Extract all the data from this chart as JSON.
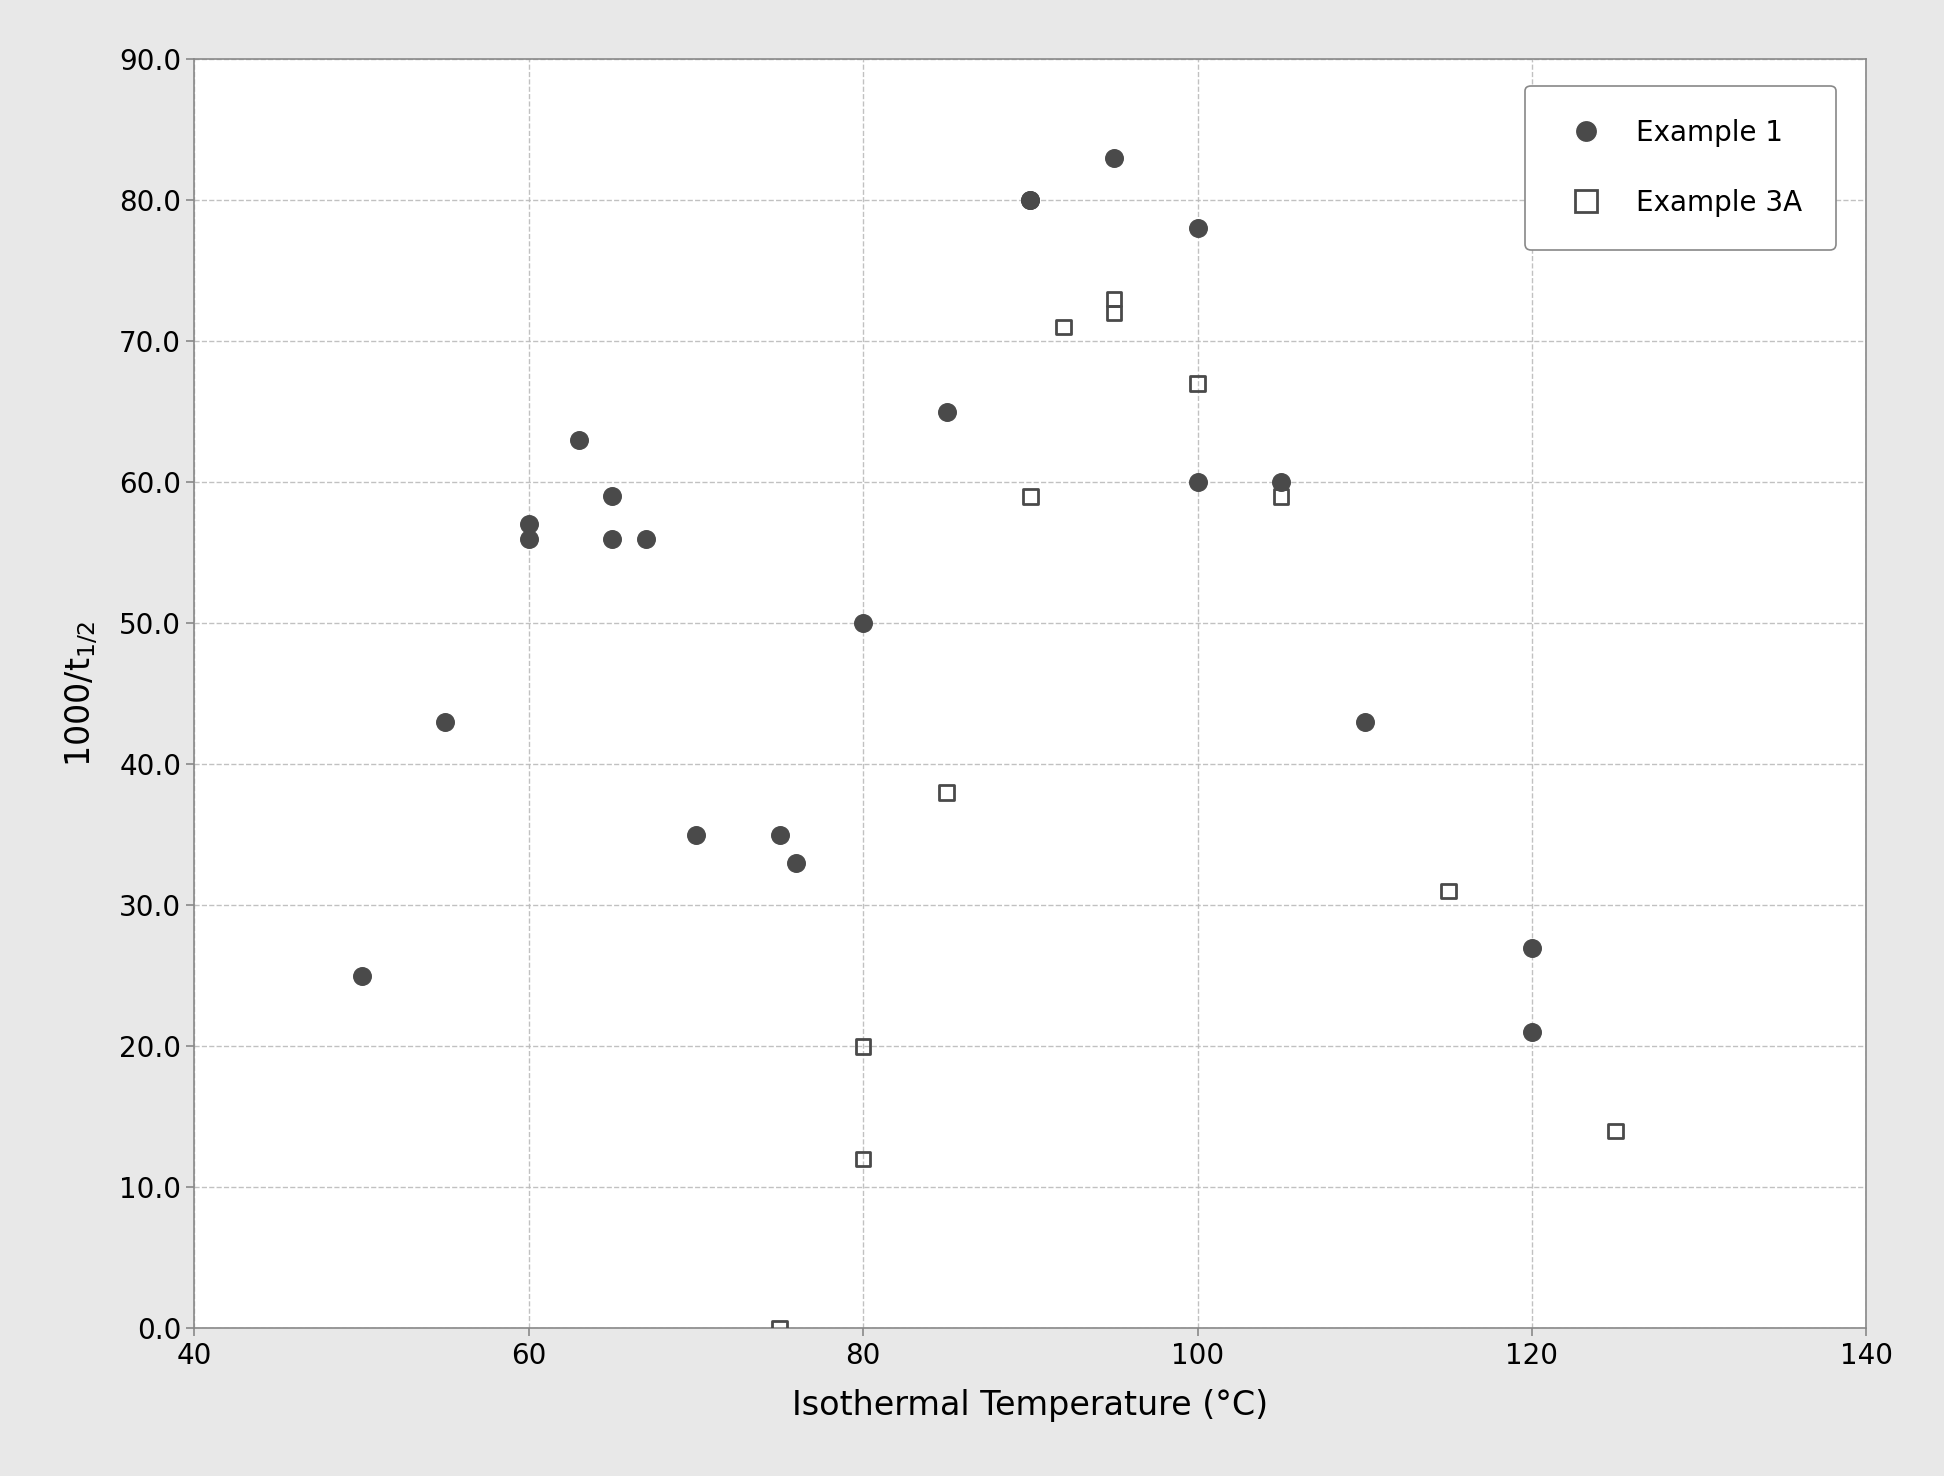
{
  "example1_x": [
    50,
    55,
    60,
    60,
    63,
    65,
    65,
    67,
    70,
    75,
    76,
    80,
    85,
    90,
    90,
    95,
    100,
    100,
    105,
    110,
    120,
    120
  ],
  "example1_y": [
    25,
    43,
    56,
    57,
    63,
    59,
    56,
    56,
    35,
    35,
    33,
    50,
    65,
    80,
    80,
    83,
    78,
    60,
    60,
    43,
    27,
    21
  ],
  "example3a_x": [
    75,
    80,
    80,
    85,
    90,
    92,
    95,
    95,
    100,
    105,
    115,
    125
  ],
  "example3a_y": [
    0,
    12,
    20,
    38,
    59,
    71,
    73,
    72,
    67,
    59,
    31,
    14
  ],
  "xlabel": "Isothermal Temperature (°C)",
  "xlim": [
    40,
    140
  ],
  "ylim": [
    0.0,
    90.0
  ],
  "xticks": [
    40,
    60,
    80,
    100,
    120,
    140
  ],
  "yticks": [
    0.0,
    10.0,
    20.0,
    30.0,
    40.0,
    50.0,
    60.0,
    70.0,
    80.0,
    90.0
  ],
  "legend_label1": "Example 1",
  "legend_label2": "Example 3A",
  "marker_color1": "#4a4a4a",
  "marker_color2": "#4a4a4a",
  "marker_size1": 160,
  "marker_size2": 110,
  "figure_facecolor": "#e8e8e8",
  "axes_facecolor": "#ffffff",
  "grid_color": "#bbbbbb",
  "spine_color": "#888888"
}
